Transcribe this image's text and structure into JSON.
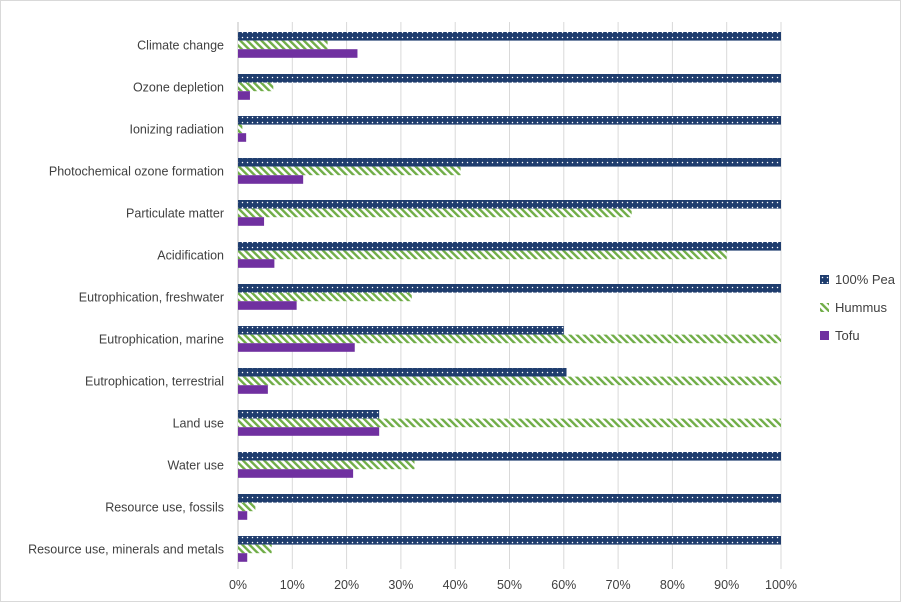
{
  "chart_data": {
    "type": "bar",
    "orientation": "horizontal",
    "title": "",
    "xlabel": "",
    "ylabel": "",
    "xlim": [
      0,
      100
    ],
    "x_ticks": [
      "0%",
      "10%",
      "20%",
      "30%",
      "40%",
      "50%",
      "60%",
      "70%",
      "80%",
      "90%",
      "100%"
    ],
    "grid": true,
    "legend_position": "right",
    "categories": [
      "Climate change",
      "Ozone depletion",
      "Ionizing radiation",
      "Photochemical ozone formation",
      "Particulate matter",
      "Acidification",
      "Eutrophication, freshwater",
      "Eutrophication, marine",
      "Eutrophication, terrestrial",
      "Land use",
      "Water use",
      "Resource use, fossils",
      "Resource use, minerals and metals"
    ],
    "series": [
      {
        "name": "100% Pea",
        "color": "#1f3d6e",
        "pattern": "dotted",
        "values": [
          100,
          100,
          100,
          100,
          100,
          100,
          100,
          60,
          60.5,
          26,
          100,
          100,
          100
        ]
      },
      {
        "name": "Hummus",
        "color": "#70ad47",
        "pattern": "diagonal-stripes",
        "values": [
          16.5,
          6.5,
          0.8,
          41,
          72.5,
          90,
          32,
          100,
          100,
          100,
          32.5,
          3.2,
          6.2
        ]
      },
      {
        "name": "Tofu",
        "color": "#7030a0",
        "pattern": "solid",
        "values": [
          22,
          2.2,
          1.5,
          12,
          4.8,
          6.7,
          10.8,
          21.5,
          5.5,
          26,
          21.2,
          1.7,
          1.7
        ]
      }
    ]
  }
}
